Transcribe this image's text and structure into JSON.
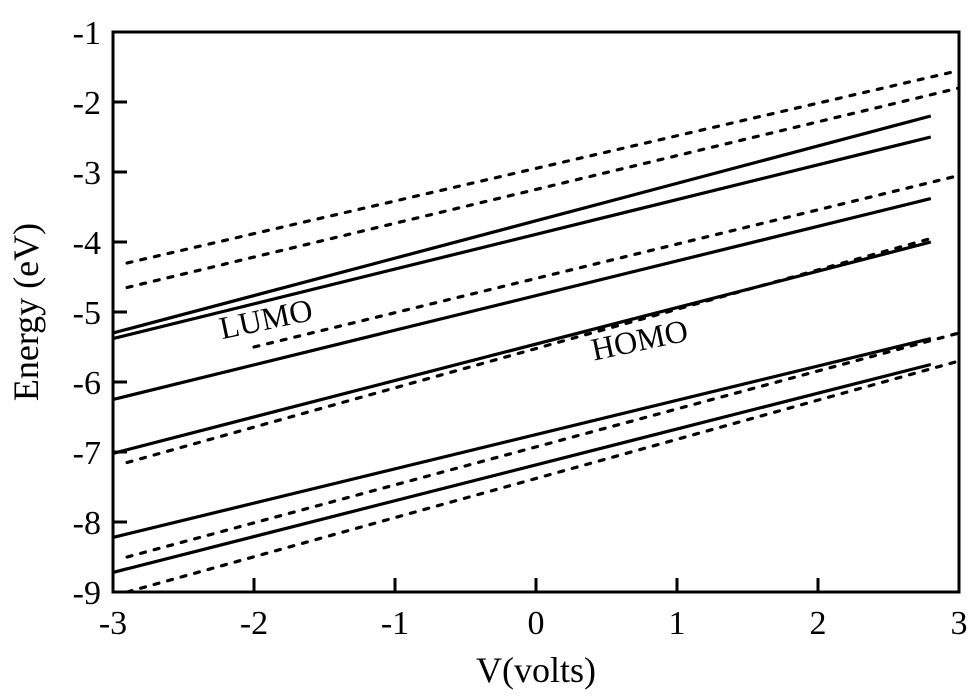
{
  "chart_data": {
    "type": "line",
    "title": "",
    "xlabel": "V(volts)",
    "ylabel": "Energy (eV)",
    "xlim": [
      -3,
      3
    ],
    "ylim": [
      -9,
      -1
    ],
    "x_ticks": [
      -3,
      -2,
      -1,
      0,
      1,
      2,
      3
    ],
    "y_ticks": [
      -9,
      -8,
      -7,
      -6,
      -5,
      -4,
      -3,
      -2,
      -1
    ],
    "x_tick_labels": [
      "-3",
      "-2",
      "-1",
      "0",
      "1",
      "2",
      "3"
    ],
    "y_tick_labels": [
      "-9",
      "-8",
      "-7",
      "-6",
      "-5",
      "-4",
      "-3",
      "-2",
      "-1"
    ],
    "grid": false,
    "legend": "none",
    "annotations": [
      {
        "text": "LUMO",
        "x": -1.9,
        "y": -5.25,
        "rotation_deg": -12
      },
      {
        "text": "HOMO",
        "x": 0.75,
        "y": -5.55,
        "rotation_deg": -12
      }
    ],
    "series": [
      {
        "style": "solid",
        "x": [
          -3,
          2.8
        ],
        "y": [
          -5.3,
          -2.2
        ]
      },
      {
        "style": "solid",
        "x": [
          -3,
          2.8
        ],
        "y": [
          -5.38,
          -2.5
        ]
      },
      {
        "style": "solid",
        "x": [
          -3,
          2.8
        ],
        "y": [
          -6.25,
          -3.38
        ]
      },
      {
        "style": "solid",
        "x": [
          -3,
          2.8
        ],
        "y": [
          -7.02,
          -4.0
        ]
      },
      {
        "style": "solid",
        "x": [
          -3,
          2.8
        ],
        "y": [
          -8.22,
          -5.38
        ]
      },
      {
        "style": "solid",
        "x": [
          -3,
          2.8
        ],
        "y": [
          -8.72,
          -5.75
        ]
      },
      {
        "style": "dotted",
        "x": [
          -2.9,
          3
        ],
        "y": [
          -4.3,
          -1.55
        ]
      },
      {
        "style": "dotted",
        "x": [
          -2.9,
          3
        ],
        "y": [
          -4.65,
          -1.8
        ]
      },
      {
        "style": "dotted",
        "x": [
          -2.0,
          3
        ],
        "y": [
          -5.5,
          -3.05
        ]
      },
      {
        "style": "dotted",
        "x": [
          -2.9,
          2.8
        ],
        "y": [
          -7.15,
          -3.95
        ]
      },
      {
        "style": "dotted",
        "x": [
          -2.9,
          3
        ],
        "y": [
          -8.5,
          -5.3
        ]
      },
      {
        "style": "dotted",
        "x": [
          -2.9,
          3
        ],
        "y": [
          -9.0,
          -5.7
        ]
      }
    ]
  }
}
